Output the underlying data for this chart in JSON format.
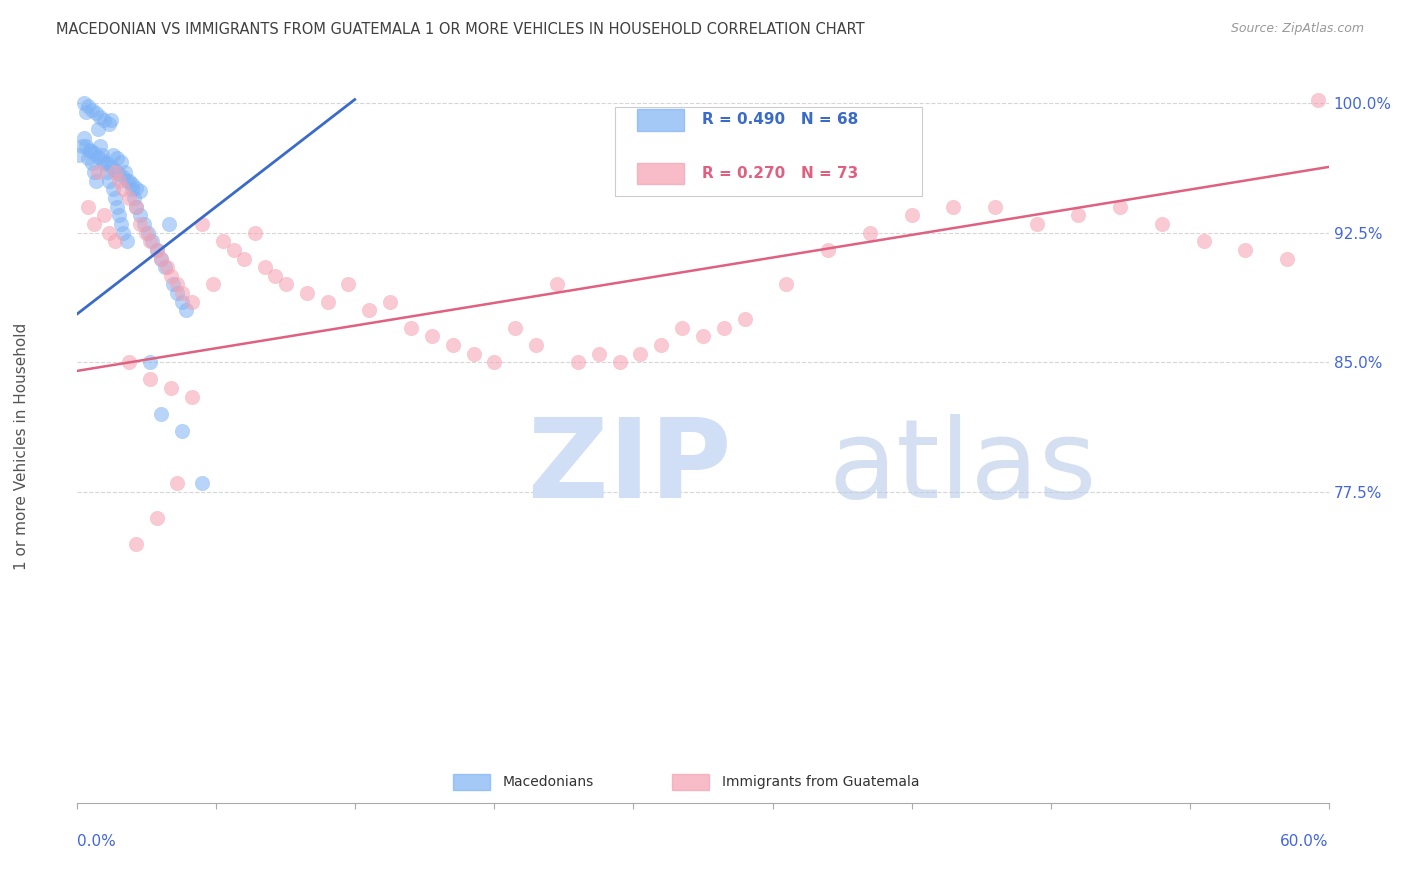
{
  "title": "MACEDONIAN VS IMMIGRANTS FROM GUATEMALA 1 OR MORE VEHICLES IN HOUSEHOLD CORRELATION CHART",
  "source": "Source: ZipAtlas.com",
  "ylabel": "1 or more Vehicles in Household",
  "legend_blue_r": "R = 0.490",
  "legend_blue_n": "N = 68",
  "legend_pink_r": "R = 0.270",
  "legend_pink_n": "N = 73",
  "blue_scatter_color": "#7EB3F5",
  "pink_scatter_color": "#F5A0B0",
  "blue_line_color": "#3A6BC8",
  "pink_line_color": "#E06080",
  "title_color": "#404040",
  "axis_label_color": "#4466DD",
  "watermark_zip_color": "#D0DFF5",
  "watermark_atlas_color": "#B8CCE8",
  "background_color": "#FFFFFF",
  "grid_color": "#CCCCCC",
  "xmin": 0.0,
  "xmax": 0.6,
  "ymin": 0.595,
  "ymax": 1.008,
  "ytick_vals": [
    0.775,
    0.85,
    0.925,
    1.0
  ],
  "ytick_labels": [
    "77.5%",
    "85.0%",
    "92.5%",
    "100.0%"
  ],
  "blue_x": [
    0.001,
    0.002,
    0.003,
    0.004,
    0.005,
    0.006,
    0.007,
    0.008,
    0.009,
    0.01,
    0.011,
    0.012,
    0.013,
    0.014,
    0.015,
    0.016,
    0.017,
    0.018,
    0.019,
    0.02,
    0.021,
    0.022,
    0.023,
    0.024,
    0.025,
    0.026,
    0.027,
    0.028,
    0.03,
    0.032,
    0.034,
    0.036,
    0.038,
    0.04,
    0.042,
    0.044,
    0.046,
    0.048,
    0.05,
    0.052,
    0.003,
    0.005,
    0.007,
    0.009,
    0.011,
    0.013,
    0.015,
    0.017,
    0.019,
    0.021,
    0.004,
    0.006,
    0.008,
    0.01,
    0.012,
    0.014,
    0.016,
    0.018,
    0.02,
    0.022,
    0.024,
    0.026,
    0.028,
    0.03,
    0.035,
    0.04,
    0.05,
    0.06
  ],
  "blue_y": [
    0.97,
    0.975,
    0.98,
    0.995,
    0.968,
    0.972,
    0.965,
    0.96,
    0.955,
    0.985,
    0.975,
    0.97,
    0.965,
    0.96,
    0.955,
    0.99,
    0.95,
    0.945,
    0.94,
    0.935,
    0.93,
    0.925,
    0.96,
    0.92,
    0.955,
    0.95,
    0.945,
    0.94,
    0.935,
    0.93,
    0.925,
    0.92,
    0.915,
    0.91,
    0.905,
    0.93,
    0.895,
    0.89,
    0.885,
    0.88,
    1.0,
    0.998,
    0.996,
    0.994,
    0.992,
    0.99,
    0.988,
    0.97,
    0.968,
    0.966,
    0.975,
    0.973,
    0.971,
    0.969,
    0.967,
    0.965,
    0.963,
    0.961,
    0.959,
    0.957,
    0.955,
    0.953,
    0.951,
    0.949,
    0.85,
    0.82,
    0.81,
    0.78
  ],
  "pink_x": [
    0.005,
    0.008,
    0.01,
    0.013,
    0.015,
    0.018,
    0.02,
    0.022,
    0.025,
    0.028,
    0.03,
    0.033,
    0.035,
    0.038,
    0.04,
    0.043,
    0.045,
    0.048,
    0.05,
    0.055,
    0.06,
    0.065,
    0.07,
    0.075,
    0.08,
    0.085,
    0.09,
    0.095,
    0.1,
    0.11,
    0.12,
    0.13,
    0.14,
    0.15,
    0.16,
    0.17,
    0.18,
    0.19,
    0.2,
    0.21,
    0.22,
    0.23,
    0.24,
    0.25,
    0.26,
    0.27,
    0.28,
    0.29,
    0.3,
    0.31,
    0.32,
    0.34,
    0.36,
    0.38,
    0.4,
    0.42,
    0.44,
    0.46,
    0.48,
    0.5,
    0.52,
    0.54,
    0.56,
    0.58,
    0.595,
    0.025,
    0.035,
    0.045,
    0.055,
    0.018,
    0.028,
    0.038,
    0.048
  ],
  "pink_y": [
    0.94,
    0.93,
    0.96,
    0.935,
    0.925,
    0.92,
    0.955,
    0.95,
    0.945,
    0.94,
    0.93,
    0.925,
    0.92,
    0.915,
    0.91,
    0.905,
    0.9,
    0.895,
    0.89,
    0.885,
    0.93,
    0.895,
    0.92,
    0.915,
    0.91,
    0.925,
    0.905,
    0.9,
    0.895,
    0.89,
    0.885,
    0.895,
    0.88,
    0.885,
    0.87,
    0.865,
    0.86,
    0.855,
    0.85,
    0.87,
    0.86,
    0.895,
    0.85,
    0.855,
    0.85,
    0.855,
    0.86,
    0.87,
    0.865,
    0.87,
    0.875,
    0.895,
    0.915,
    0.925,
    0.935,
    0.94,
    0.94,
    0.93,
    0.935,
    0.94,
    0.93,
    0.92,
    0.915,
    0.91,
    1.002,
    0.85,
    0.84,
    0.835,
    0.83,
    0.96,
    0.745,
    0.76,
    0.78
  ],
  "blue_trend_x": [
    0.0,
    0.133
  ],
  "blue_trend_y": [
    0.878,
    1.002
  ],
  "pink_trend_x": [
    0.0,
    0.6
  ],
  "pink_trend_y": [
    0.845,
    0.963
  ]
}
